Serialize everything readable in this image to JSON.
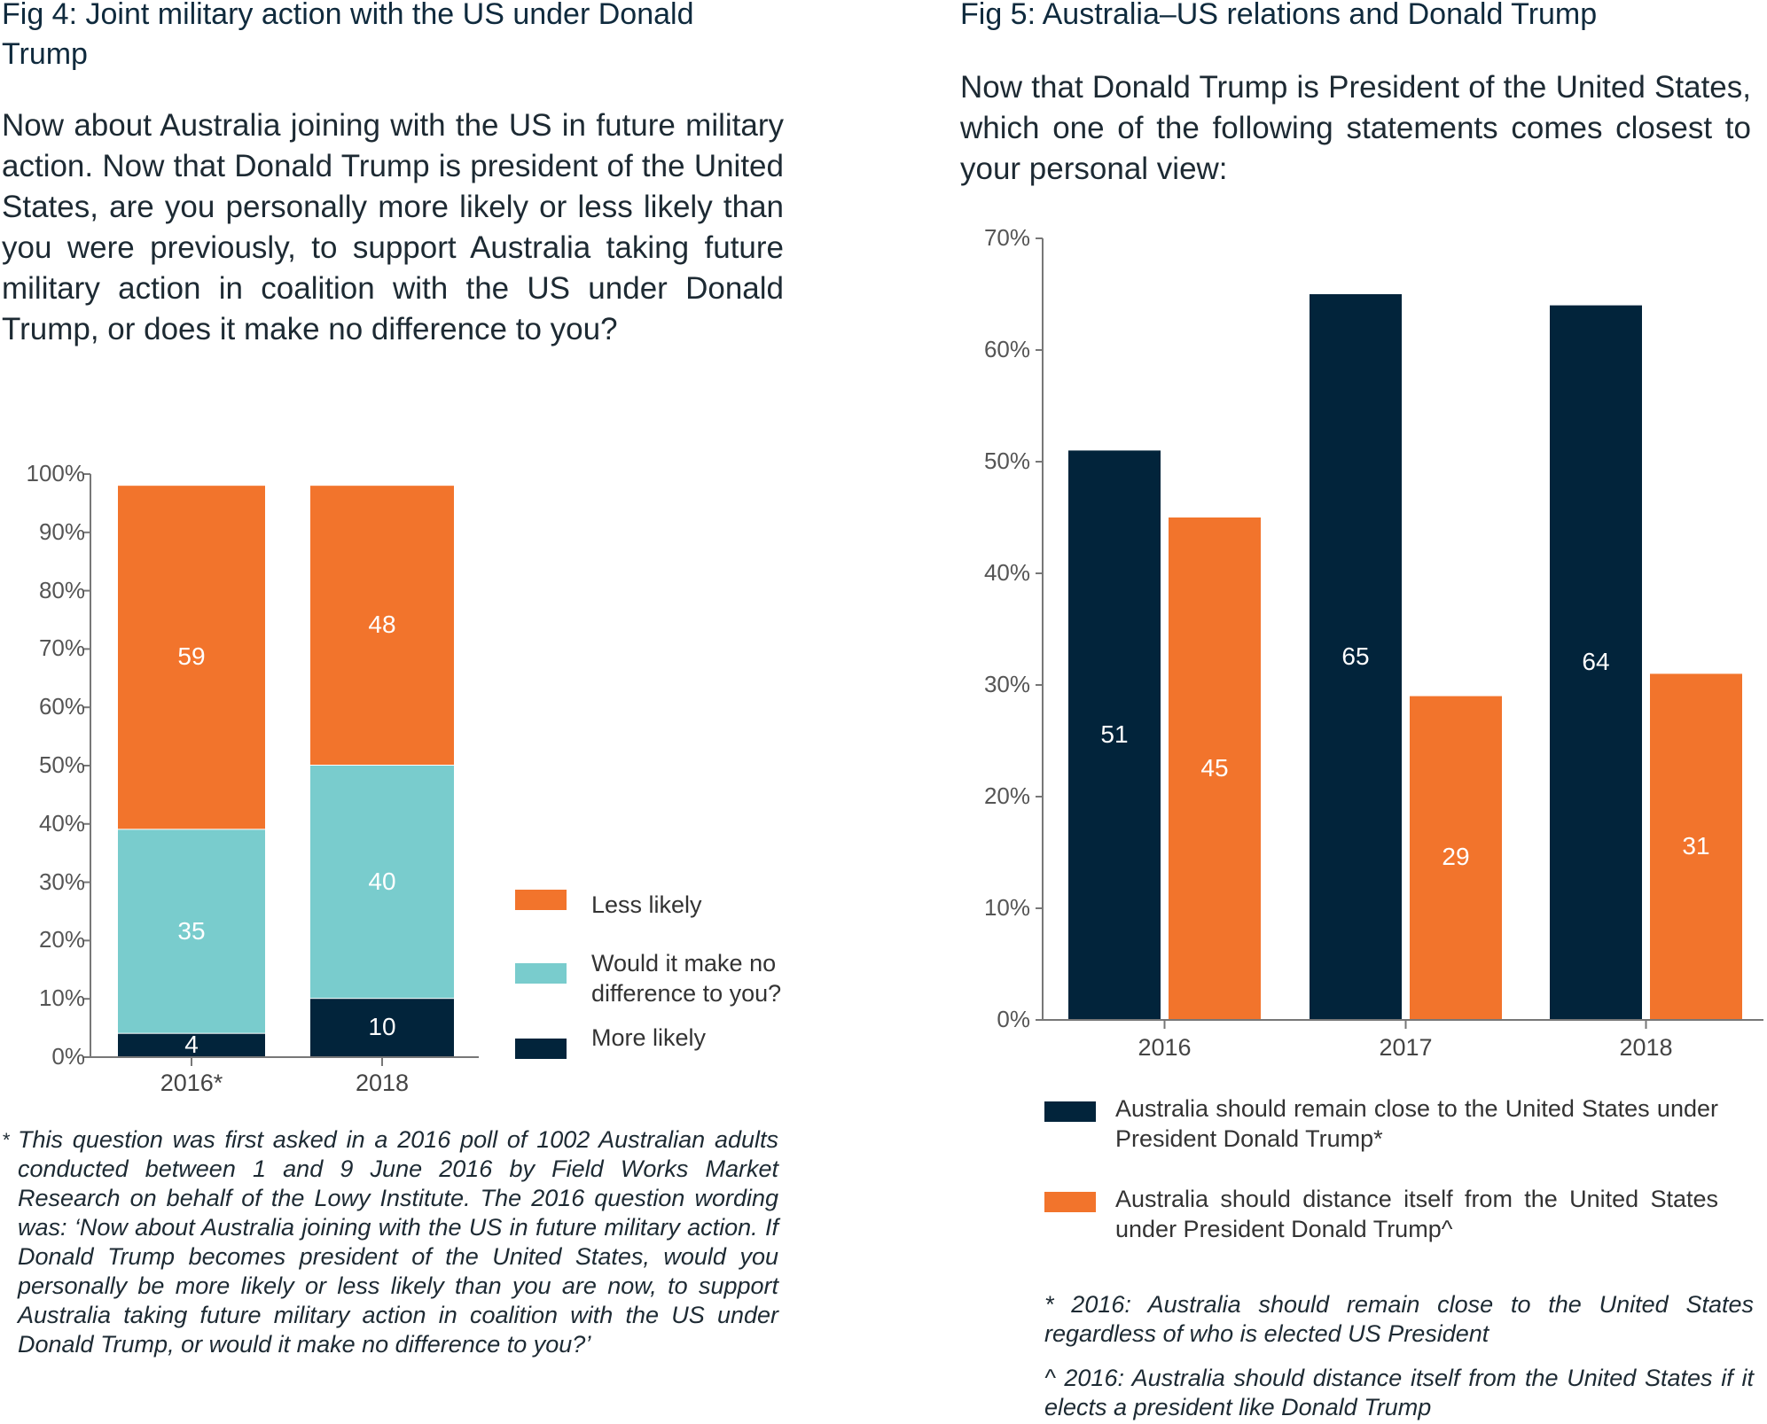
{
  "fig4": {
    "title": "Fig 4: Joint military action with the US under Donald Trump",
    "question": "Now about Australia joining with the US in future military action. Now that Donald Trump is president of the United States, are you personally more likely or less likely than you were previously, to support Australia taking future military action in coalition with the US under Donald Trump, or does it make no difference to you?",
    "footnote_marker": "*",
    "footnote": "This question was first asked in a 2016 poll of 1002 Australian adults conducted between 1 and 9 June 2016 by Field Works Market Research on behalf of the Lowy Institute. The 2016 question wording was: ‘Now about Australia joining with the US in future military action. If Donald Trump becomes president of the United States, would you personally be more likely or less likely than you are now, to support Australia taking future military action in coalition with the US under Donald Trump, or would it make no difference to you?’"
  },
  "fig5": {
    "title": "Fig 5: Australia–US relations and Donald Trump",
    "question": "Now that Donald Trump is President of the United States, which one of the following statements comes closest to your personal view:",
    "footnote1": "* 2016: Australia should remain close to the United States regardless of who is elected US President",
    "footnote2": "^ 2016: Australia should distance itself from the United States if it elects a president like Donald Trump"
  },
  "chart_data": [
    {
      "type": "bar",
      "stacked": true,
      "categories": [
        "2016*",
        "2018"
      ],
      "series": [
        {
          "name": "More likely",
          "values": [
            4,
            10
          ],
          "color": "#02243b"
        },
        {
          "name": "Would it make no difference to you?",
          "values": [
            35,
            40
          ],
          "color": "#79cccd"
        },
        {
          "name": "Less likely",
          "values": [
            59,
            48
          ],
          "color": "#f2742c"
        }
      ],
      "ylim": [
        0,
        100
      ],
      "yticks": [
        "0%",
        "10%",
        "20%",
        "30%",
        "40%",
        "50%",
        "60%",
        "70%",
        "80%",
        "90%",
        "100%"
      ],
      "legend_order": [
        "Less likely",
        "Would it make no difference to you?",
        "More likely"
      ],
      "legend": "right",
      "grid": false
    },
    {
      "type": "bar",
      "stacked": false,
      "categories": [
        "2016",
        "2017",
        "2018"
      ],
      "series": [
        {
          "name": "Australia should remain close to the United States under President Donald Trump*",
          "values": [
            51,
            65,
            64
          ],
          "color": "#02243b"
        },
        {
          "name": "Australia should distance itself from the United States under President Donald Trump^",
          "values": [
            45,
            29,
            31
          ],
          "color": "#f2742c"
        }
      ],
      "ylim": [
        0,
        70
      ],
      "yticks": [
        "0%",
        "10%",
        "20%",
        "30%",
        "40%",
        "50%",
        "60%",
        "70%"
      ],
      "legend": "bottom",
      "grid": false
    }
  ]
}
